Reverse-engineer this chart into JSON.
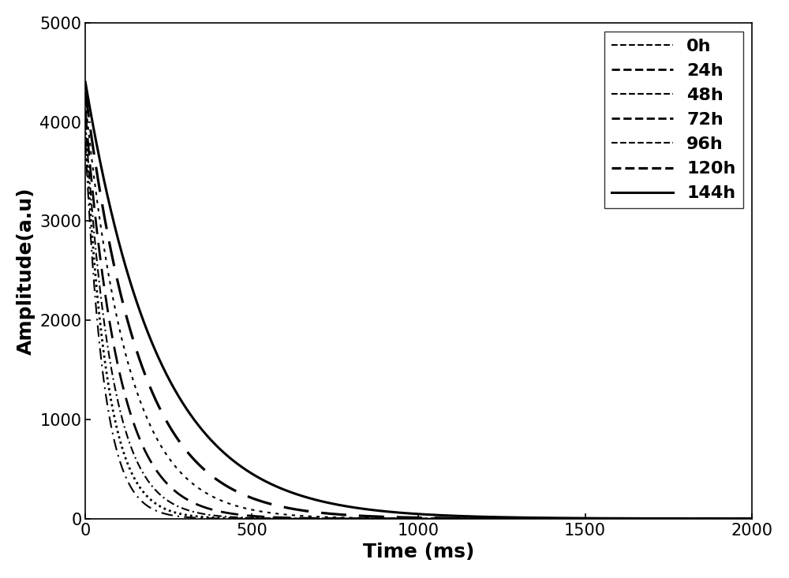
{
  "title": "",
  "xlabel": "Time (ms)",
  "ylabel": "Amplitude(a.u)",
  "xlim": [
    0,
    2000
  ],
  "ylim": [
    0,
    5000
  ],
  "xticks": [
    0,
    500,
    1000,
    1500,
    2000
  ],
  "yticks": [
    0,
    1000,
    2000,
    3000,
    4000,
    5000
  ],
  "background_color": "#ffffff",
  "series": [
    {
      "label": "0h",
      "A": 3800,
      "T": 55,
      "color": "#000000"
    },
    {
      "label": "24h",
      "A": 3900,
      "T": 65,
      "color": "#000000"
    },
    {
      "label": "48h",
      "A": 4000,
      "T": 80,
      "color": "#000000"
    },
    {
      "label": "72h",
      "A": 4100,
      "T": 100,
      "color": "#000000"
    },
    {
      "label": "96h",
      "A": 4200,
      "T": 130,
      "color": "#000000"
    },
    {
      "label": "120h",
      "A": 4300,
      "T": 165,
      "color": "#000000"
    },
    {
      "label": "144h",
      "A": 4400,
      "T": 220,
      "color": "#000000"
    }
  ],
  "linestyles": {
    "0h": {
      "ls_tuple": [
        7,
        3,
        1,
        3
      ],
      "lw": 1.5
    },
    "24h": {
      "ls_tuple": [
        1,
        1.5
      ],
      "lw": 2.0
    },
    "48h": {
      "ls_tuple": [
        5,
        2,
        1,
        2
      ],
      "lw": 1.5
    },
    "72h": {
      "ls_tuple": [
        8,
        4
      ],
      "lw": 2.0
    },
    "96h": {
      "ls_tuple": [
        2,
        3,
        2,
        3
      ],
      "lw": 1.5
    },
    "120h": {
      "ls_tuple": [
        10,
        5
      ],
      "lw": 2.3
    },
    "144h": {
      "ls_tuple": null,
      "lw": 2.2
    }
  },
  "legend_loc": "upper right",
  "legend_fontsize": 16,
  "axis_fontsize": 18,
  "tick_fontsize": 15
}
